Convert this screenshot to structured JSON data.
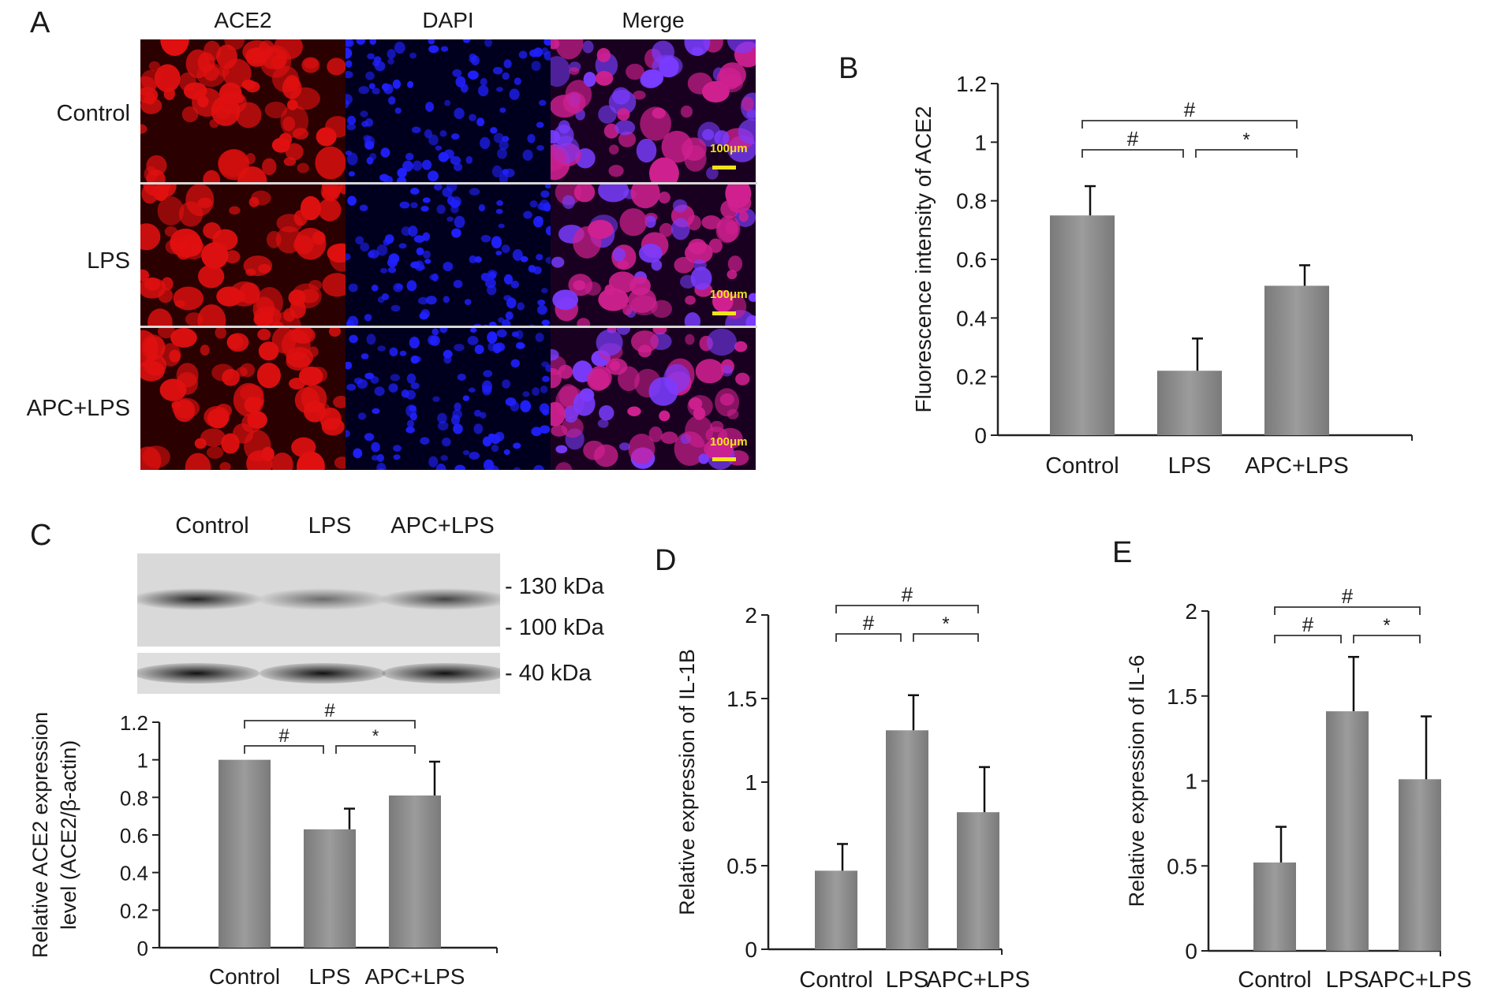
{
  "panels": {
    "a": "A",
    "b": "B",
    "c": "C",
    "d": "D",
    "e": "E"
  },
  "panel_a": {
    "columns": [
      "ACE2",
      "DAPI",
      "Merge"
    ],
    "rows": [
      "Control",
      "LPS",
      "APC+LPS"
    ],
    "scale_label": "100μm",
    "colors": {
      "ace2": "#e01010",
      "dapi": "#2020ff",
      "merge": "#9a20c8",
      "scale": "#f2e21a"
    }
  },
  "panel_c_blot": {
    "lanes": [
      "Control",
      "LPS",
      "APC+LPS"
    ],
    "markers": [
      "- 130 kDa",
      "- 100 kDa",
      "- 40 kDa"
    ],
    "band_intensity": [
      0.9,
      0.55,
      0.75
    ],
    "actin_intensity": [
      0.95,
      0.95,
      0.95
    ]
  },
  "chart_data": [
    {
      "panel": "B",
      "type": "bar",
      "categories": [
        "Control",
        "LPS",
        "APC+LPS"
      ],
      "values": [
        0.75,
        0.22,
        0.51
      ],
      "errors": [
        0.1,
        0.11,
        0.07
      ],
      "ylabel": "Fluorescence intensity of ACE2",
      "ylim": [
        0,
        1.2
      ],
      "yticks": [
        "0",
        "0.2",
        "0.4",
        "0.6",
        "0.8",
        "1",
        "1.2"
      ],
      "significance": [
        {
          "from": 0,
          "to": 1,
          "symbol": "#",
          "level": 1
        },
        {
          "from": 1,
          "to": 2,
          "symbol": "*",
          "level": 1
        },
        {
          "from": 0,
          "to": 2,
          "symbol": "#",
          "level": 2
        }
      ]
    },
    {
      "panel": "C",
      "type": "bar",
      "categories": [
        "Control",
        "LPS",
        "APC+LPS"
      ],
      "values": [
        1.0,
        0.63,
        0.81
      ],
      "errors": [
        0.0,
        0.11,
        0.18
      ],
      "ylabel": "Relative ACE2 expression level (ACE2/β-actin)",
      "ylabel_lines": [
        "Relative ACE2 expression",
        "level (ACE2/β-actin)"
      ],
      "ylim": [
        0,
        1.2
      ],
      "yticks": [
        "0",
        "0.2",
        "0.4",
        "0.6",
        "0.8",
        "1",
        "1.2"
      ],
      "significance": [
        {
          "from": 0,
          "to": 1,
          "symbol": "#",
          "level": 1
        },
        {
          "from": 1,
          "to": 2,
          "symbol": "*",
          "level": 1
        },
        {
          "from": 0,
          "to": 2,
          "symbol": "#",
          "level": 2
        }
      ]
    },
    {
      "panel": "D",
      "type": "bar",
      "categories": [
        "Control",
        "LPS",
        "APC+LPS"
      ],
      "values": [
        0.47,
        1.31,
        0.82
      ],
      "errors": [
        0.16,
        0.21,
        0.27
      ],
      "ylabel": "Relative expression of IL-1B",
      "ylim": [
        0,
        2
      ],
      "yticks": [
        "0",
        "0.5",
        "1",
        "1.5",
        "2"
      ],
      "significance": [
        {
          "from": 0,
          "to": 1,
          "symbol": "#",
          "level": 1
        },
        {
          "from": 1,
          "to": 2,
          "symbol": "*",
          "level": 1
        },
        {
          "from": 0,
          "to": 2,
          "symbol": "#",
          "level": 2
        }
      ]
    },
    {
      "panel": "E",
      "type": "bar",
      "categories": [
        "Control",
        "LPS",
        "APC+LPS"
      ],
      "values": [
        0.52,
        1.41,
        1.01
      ],
      "errors": [
        0.21,
        0.32,
        0.37
      ],
      "ylabel": "Relative expression of IL-6",
      "ylim": [
        0,
        2
      ],
      "yticks": [
        "0",
        "0.5",
        "1",
        "1.5",
        "2"
      ],
      "significance": [
        {
          "from": 0,
          "to": 1,
          "symbol": "#",
          "level": 1
        },
        {
          "from": 1,
          "to": 2,
          "symbol": "*",
          "level": 1
        },
        {
          "from": 0,
          "to": 2,
          "symbol": "#",
          "level": 2
        }
      ]
    }
  ]
}
